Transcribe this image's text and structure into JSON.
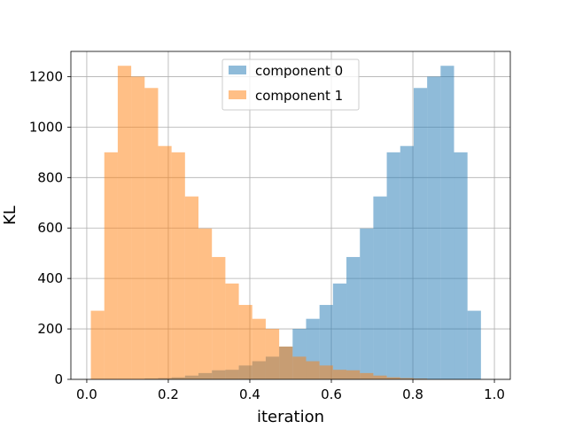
{
  "chart_data": {
    "type": "bar",
    "subtype": "overlaid-histogram",
    "title": "",
    "xlabel": "iteration",
    "ylabel": "KL",
    "xlim": [
      -0.039,
      1.039
    ],
    "ylim": [
      0,
      1300
    ],
    "xticks": [
      "0.0",
      "0.2",
      "0.4",
      "0.6",
      "0.8",
      "1.0"
    ],
    "yticks": [
      "0",
      "200",
      "400",
      "600",
      "800",
      "1000",
      "1200"
    ],
    "grid": true,
    "legend_position": "upper center",
    "bin_edges": [
      0.01,
      0.043,
      0.076,
      0.109,
      0.142,
      0.175,
      0.208,
      0.241,
      0.274,
      0.307,
      0.34,
      0.373,
      0.406,
      0.439,
      0.472,
      0.505,
      0.538,
      0.571,
      0.604,
      0.637,
      0.67,
      0.703,
      0.736,
      0.769,
      0.802,
      0.835,
      0.868,
      0.901,
      0.934,
      0.967,
      1.0
    ],
    "series": [
      {
        "name": "component 0",
        "color": "#1f77b4",
        "alpha": 0.5,
        "values": [
          0,
          0,
          0,
          0,
          3,
          5,
          8,
          15,
          25,
          36,
          38,
          55,
          72,
          90,
          130,
          200,
          240,
          295,
          380,
          485,
          598,
          725,
          900,
          925,
          1155,
          1200,
          1243,
          900,
          272,
          0
        ]
      },
      {
        "name": "component 1",
        "color": "#ff7f0e",
        "alpha": 0.5,
        "values": [
          272,
          900,
          1243,
          1200,
          1155,
          925,
          900,
          725,
          598,
          485,
          380,
          295,
          240,
          200,
          130,
          90,
          72,
          55,
          38,
          36,
          25,
          15,
          8,
          5,
          3,
          0,
          0,
          0,
          0,
          0
        ]
      }
    ]
  }
}
